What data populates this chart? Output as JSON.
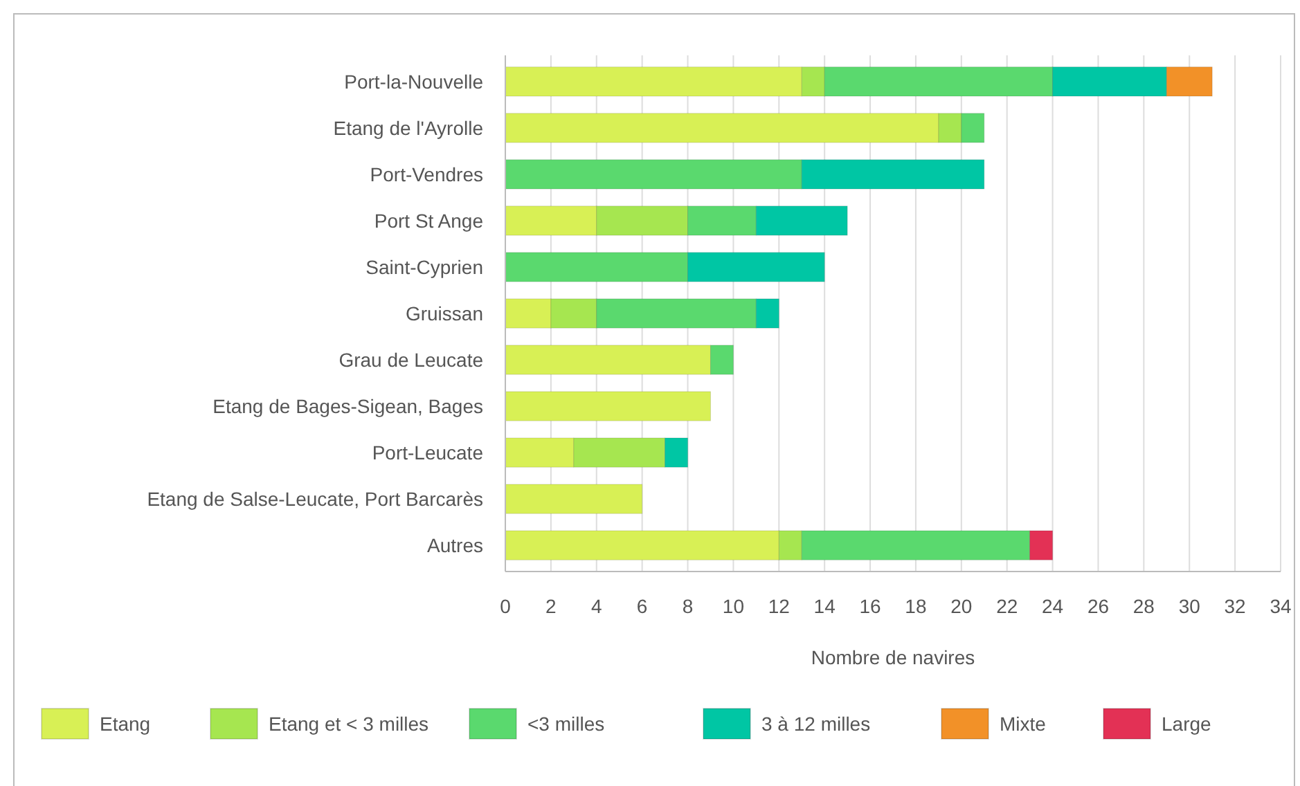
{
  "chart_data": {
    "type": "bar",
    "orientation": "horizontal",
    "stacked": true,
    "xlabel": "Nombre de navires",
    "categories": [
      "Port-la-Nouvelle",
      "Etang de l'Ayrolle",
      "Port-Vendres",
      "Port St Ange",
      "Saint-Cyprien",
      "Gruissan",
      "Grau de Leucate",
      "Etang de Bages-Sigean, Bages",
      "Port-Leucate",
      "Etang de Salse-Leucate, Port Barcarès",
      "Autres"
    ],
    "series": [
      {
        "name": "Etang",
        "color": "#d8f055",
        "values": [
          13,
          19,
          0,
          4,
          0,
          2,
          9,
          9,
          3,
          6,
          12
        ]
      },
      {
        "name": "Etang et < 3 milles",
        "color": "#a6e650",
        "values": [
          1,
          1,
          0,
          4,
          0,
          2,
          0,
          0,
          4,
          0,
          1
        ]
      },
      {
        "name": "<3 milles",
        "color": "#5ad96e",
        "values": [
          10,
          1,
          13,
          3,
          8,
          7,
          1,
          0,
          0,
          0,
          10
        ]
      },
      {
        "name": "3 à 12 milles",
        "color": "#00c6a4",
        "values": [
          5,
          0,
          8,
          4,
          6,
          1,
          0,
          0,
          1,
          0,
          0
        ]
      },
      {
        "name": "Mixte",
        "color": "#f29128",
        "values": [
          2,
          0,
          0,
          0,
          0,
          0,
          0,
          0,
          0,
          0,
          0
        ]
      },
      {
        "name": "Large",
        "color": "#e33155",
        "values": [
          0,
          0,
          0,
          0,
          0,
          0,
          0,
          0,
          0,
          0,
          1
        ]
      }
    ],
    "xlim": [
      0,
      34
    ],
    "xticks": [
      0,
      2,
      4,
      6,
      8,
      10,
      12,
      14,
      16,
      18,
      20,
      22,
      24,
      26,
      28,
      30,
      32,
      34
    ],
    "grid": "x",
    "legend": "bottom"
  }
}
